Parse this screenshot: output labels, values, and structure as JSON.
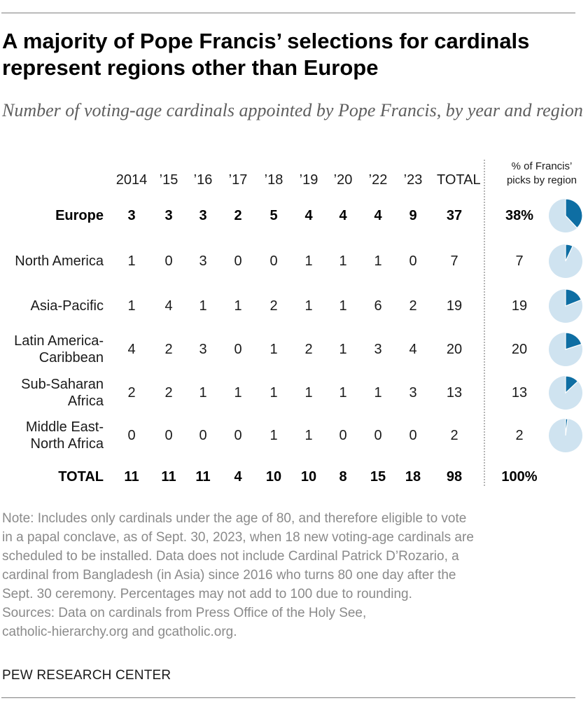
{
  "title": "A majority of Pope Francis’ selections for cardinals represent regions other than Europe",
  "subtitle": "Number of voting-age cardinals appointed by Pope Francis, by year and region",
  "pct_header": [
    "% of Francis’",
    "picks by region"
  ],
  "chart_data": {
    "type": "table",
    "columns": [
      "2014",
      "’15",
      "’16",
      "’17",
      "’18",
      "’19",
      "’20",
      "’22",
      "’23",
      "TOTAL"
    ],
    "rows": [
      {
        "label": [
          "Europe"
        ],
        "values": [
          "3",
          "3",
          "3",
          "2",
          "5",
          "4",
          "4",
          "4",
          "9",
          "37"
        ],
        "pct": "38%",
        "share": 0.38,
        "bold": true
      },
      {
        "label": [
          "North America"
        ],
        "values": [
          "1",
          "0",
          "3",
          "0",
          "0",
          "1",
          "1",
          "1",
          "0",
          "7"
        ],
        "pct": "7",
        "share": 0.07,
        "bold": false
      },
      {
        "label": [
          "Asia-Pacific"
        ],
        "values": [
          "1",
          "4",
          "1",
          "1",
          "2",
          "1",
          "1",
          "6",
          "2",
          "19"
        ],
        "pct": "19",
        "share": 0.19,
        "bold": false
      },
      {
        "label": [
          "Latin America-",
          "Caribbean"
        ],
        "values": [
          "4",
          "2",
          "3",
          "0",
          "1",
          "2",
          "1",
          "3",
          "4",
          "20"
        ],
        "pct": "20",
        "share": 0.2,
        "bold": false
      },
      {
        "label": [
          "Sub-Saharan",
          "Africa"
        ],
        "values": [
          "2",
          "2",
          "1",
          "1",
          "1",
          "1",
          "1",
          "1",
          "3",
          "13"
        ],
        "pct": "13",
        "share": 0.13,
        "bold": false
      },
      {
        "label": [
          "Middle East-",
          "North Africa"
        ],
        "values": [
          "0",
          "0",
          "0",
          "0",
          "1",
          "1",
          "0",
          "0",
          "0",
          "2"
        ],
        "pct": "2",
        "share": 0.02,
        "bold": false
      }
    ],
    "total_row": {
      "label": "TOTAL",
      "values": [
        "11",
        "11",
        "11",
        "4",
        "10",
        "10",
        "8",
        "15",
        "18",
        "98"
      ],
      "pct": "100%"
    },
    "colors": {
      "pie_fill": "#0e6ea3",
      "pie_bg": "#cfe3f0"
    }
  },
  "notes": [
    "Note: Includes only cardinals under the age of 80, and therefore eligible to vote",
    "in a papal conclave, as of Sept. 30, 2023, when 18 new voting-age cardinals are",
    "scheduled to be installed. Data does not include Cardinal Patrick D’Rozario, a",
    "cardinal from Bangladesh (in Asia) since 2016 who turns 80 one day after the",
    "Sept. 30 ceremony. Percentages may not add to 100 due to rounding.",
    "Sources: Data on cardinals from Press Office of the Holy See,",
    "catholic-hierarchy.org and gcatholic.org."
  ],
  "org": "PEW RESEARCH CENTER"
}
